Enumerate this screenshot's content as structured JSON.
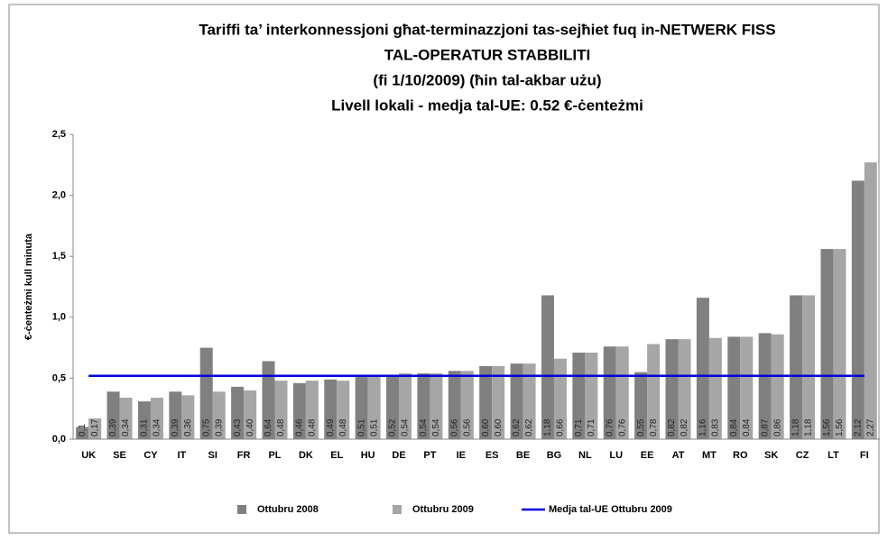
{
  "chart_data": {
    "type": "bar",
    "title": [
      "Tariffi ta’ interkonnessjoni għat-terminazzjoni tas-sejħiet fuq in-NETWERK FISS",
      "TAL-OPERATUR STABBILITI",
      "(fi 1/10/2009) (ħin tal-akbar użu)",
      "Livell lokali - medja tal-UE: 0.52 €-ċenteżmi"
    ],
    "y_label": "€-ċenteżmi kull minuta",
    "categories": [
      "UK",
      "SE",
      "CY",
      "IT",
      "SI",
      "FR",
      "PL",
      "DK",
      "EL",
      "HU",
      "DE",
      "PT",
      "IE",
      "ES",
      "BE",
      "BG",
      "NL",
      "LU",
      "EE",
      "AT",
      "MT",
      "RO",
      "SK",
      "CZ",
      "LT",
      "FI"
    ],
    "series": [
      {
        "name": "Ottubru 2008",
        "color": "#808080",
        "values": [
          0.1,
          0.39,
          0.31,
          0.39,
          0.75,
          0.43,
          0.64,
          0.46,
          0.49,
          0.51,
          0.52,
          0.54,
          0.56,
          0.6,
          0.62,
          1.18,
          0.71,
          0.76,
          0.55,
          0.82,
          1.16,
          0.84,
          0.87,
          1.18,
          1.56,
          2.12
        ],
        "value_labels": [
          "0,1",
          "0,39",
          "0,31",
          "0,39",
          "0,75",
          "0,43",
          "0,64",
          "0,46",
          "0,49",
          "0,51",
          "0,52",
          "0,54",
          "0,56",
          "0,60",
          "0,62",
          "1,18",
          "0,71",
          "0,76",
          "0,55",
          "0,82",
          "1,16",
          "0,84",
          "0,87",
          "1,18",
          "1,56",
          "2,12"
        ]
      },
      {
        "name": "Ottubru 2009",
        "color": "#a6a6a6",
        "values": [
          0.17,
          0.34,
          0.34,
          0.36,
          0.39,
          0.4,
          0.48,
          0.48,
          0.48,
          0.51,
          0.54,
          0.54,
          0.56,
          0.6,
          0.62,
          0.66,
          0.71,
          0.76,
          0.78,
          0.82,
          0.83,
          0.84,
          0.86,
          1.18,
          1.56,
          2.27
        ],
        "value_labels": [
          "0,17",
          "0,34",
          "0,34",
          "0,36",
          "0,39",
          "0,40",
          "0,48",
          "0,48",
          "0,48",
          "0,51",
          "0,54",
          "0,54",
          "0,56",
          "0,60",
          "0,62",
          "0,66",
          "0,71",
          "0,76",
          "0,78",
          "0,82",
          "0,83",
          "0,84",
          "0,86",
          "1,18",
          "1,56",
          "2,27"
        ]
      },
      {
        "name": "Medja tal-UE Ottubru 2009",
        "color": "#0000dd",
        "type": "line",
        "values": [
          0.52,
          0.52,
          0.52,
          0.52,
          0.52,
          0.52,
          0.52,
          0.52,
          0.52,
          0.52,
          0.52,
          0.52,
          0.52,
          0.52,
          0.52,
          0.52,
          0.52,
          0.52,
          0.52,
          0.52,
          0.52,
          0.52,
          0.52,
          0.52,
          0.52,
          0.52
        ]
      }
    ],
    "ylim": [
      0,
      2.5
    ],
    "yticks": [
      {
        "value": 0,
        "label": "0,0"
      },
      {
        "value": 0.5,
        "label": "0,5"
      },
      {
        "value": 1,
        "label": "1,0"
      },
      {
        "value": 1.5,
        "label": "1,5"
      },
      {
        "value": 2,
        "label": "2,0"
      },
      {
        "value": 2.5,
        "label": "2,5"
      }
    ],
    "legend": "bottom"
  }
}
